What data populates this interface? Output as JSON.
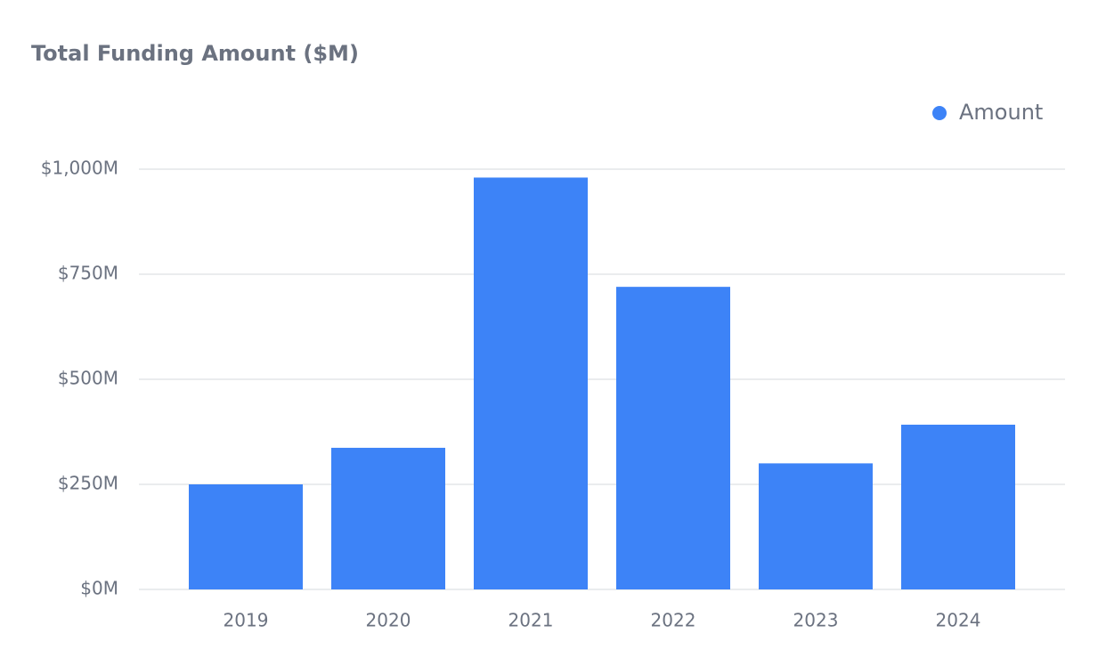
{
  "chart_data": {
    "type": "bar",
    "title": "Total Funding Amount ($M)",
    "categories": [
      "2019",
      "2020",
      "2021",
      "2022",
      "2023",
      "2024"
    ],
    "series": [
      {
        "name": "Amount",
        "color": "#3d83f7",
        "values": [
          250,
          337,
          980,
          720,
          300,
          392
        ]
      }
    ],
    "ylim": [
      0,
      1000
    ],
    "yticks": [
      {
        "value": 0,
        "label": "$0M"
      },
      {
        "value": 250,
        "label": "$250M"
      },
      {
        "value": 500,
        "label": "$500M"
      },
      {
        "value": 750,
        "label": "$750M"
      },
      {
        "value": 1000,
        "label": "$1,000M"
      }
    ],
    "grid": true,
    "legend": "top-right"
  }
}
